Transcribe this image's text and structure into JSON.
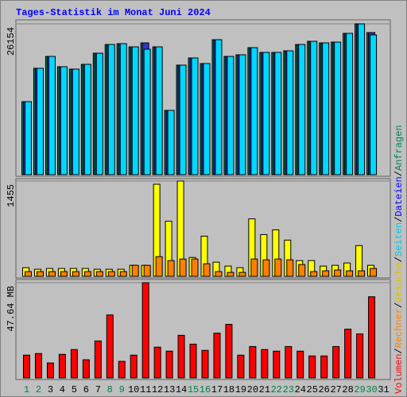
{
  "chart_data": [
    {
      "type": "bar",
      "title": "Tages-Statistik im Monat Juni 2024",
      "series": [
        {
          "name": "Anfragen",
          "color": "#00805c",
          "values": [
            12664,
            18445,
            20510,
            18720,
            18307,
            19133,
            21060,
            22575,
            22712,
            22162,
            22850,
            22162,
            11150,
            18996,
            20235,
            19271,
            23401,
            20510,
            20785,
            22024,
            21198,
            21198,
            21473,
            22575,
            23125,
            22850,
            22988,
            24502,
            26154,
            24640,
            null
          ]
        },
        {
          "name": "Dateien",
          "color": "#3333cc",
          "values": [
            12664,
            18445,
            20510,
            18720,
            18307,
            19133,
            21060,
            22575,
            22712,
            22162,
            22850,
            22162,
            11150,
            18996,
            20235,
            19271,
            23401,
            20510,
            20785,
            22024,
            21198,
            21198,
            21473,
            22575,
            23125,
            22850,
            22988,
            24502,
            26154,
            24640,
            null
          ]
        },
        {
          "name": "Seiten",
          "color": "#00d8ff",
          "values": [
            12664,
            18445,
            20510,
            18720,
            18307,
            19133,
            21060,
            22575,
            22712,
            22162,
            21749,
            22162,
            11150,
            18996,
            20235,
            19271,
            23401,
            20510,
            20785,
            22024,
            21198,
            21198,
            21473,
            22575,
            23125,
            22850,
            22988,
            24502,
            26154,
            24226,
            null
          ]
        }
      ],
      "ylim": [
        0,
        26154
      ],
      "yticks": [
        26154
      ]
    },
    {
      "type": "bar",
      "series": [
        {
          "name": "Besuche",
          "color": "#ffff00",
          "values": [
            132,
            108,
            120,
            120,
            120,
            120,
            108,
            108,
            108,
            168,
            168,
            1406,
            841,
            1455,
            288,
            613,
            216,
            156,
            132,
            877,
            637,
            709,
            553,
            240,
            240,
            156,
            168,
            204,
            469,
            168,
            null
          ]
        },
        {
          "name": "Rechner",
          "color": "#ff8000",
          "values": [
            72,
            72,
            72,
            72,
            72,
            72,
            72,
            72,
            72,
            168,
            168,
            300,
            240,
            264,
            264,
            192,
            72,
            60,
            60,
            264,
            252,
            264,
            252,
            180,
            72,
            84,
            96,
            84,
            84,
            120,
            null
          ]
        }
      ],
      "ylim": [
        0,
        1455
      ],
      "yticks": [
        1455
      ]
    },
    {
      "type": "bar",
      "categories": [
        "1",
        "2",
        "3",
        "4",
        "5",
        "6",
        "7",
        "8",
        "9",
        "10",
        "11",
        "12",
        "13",
        "14",
        "15",
        "16",
        "17",
        "18",
        "19",
        "20",
        "21",
        "22",
        "23",
        "24",
        "25",
        "26",
        "27",
        "28",
        "29",
        "30",
        "31"
      ],
      "xtick_colors": [
        "#008040",
        "#008040",
        "#000000",
        "#000000",
        "#000000",
        "#000000",
        "#000000",
        "#008040",
        "#008040",
        "#000000",
        "#000000",
        "#000000",
        "#000000",
        "#000000",
        "#008040",
        "#008040",
        "#000000",
        "#000000",
        "#000000",
        "#000000",
        "#000000",
        "#008040",
        "#008040",
        "#000000",
        "#000000",
        "#000000",
        "#000000",
        "#000000",
        "#008040",
        "#008040",
        "#000000"
      ],
      "series": [
        {
          "name": "Volumen",
          "color": "#ff0000",
          "values": [
            11.4,
            12.2,
            7.5,
            11.8,
            14.2,
            9.1,
            18.5,
            31.5,
            8.3,
            11.4,
            47.64,
            15.4,
            13.4,
            21.3,
            16.9,
            13.8,
            22.4,
            26.8,
            11.4,
            15.7,
            14.2,
            13.4,
            15.7,
            13.4,
            11.0,
            11.0,
            15.7,
            24.4,
            22.0,
            40.6,
            null
          ]
        }
      ],
      "ylim": [
        0,
        47.64
      ],
      "yticks": [
        {
          "value": 47.64,
          "label": "47.64 MB"
        }
      ]
    }
  ],
  "legend_separator": "/"
}
